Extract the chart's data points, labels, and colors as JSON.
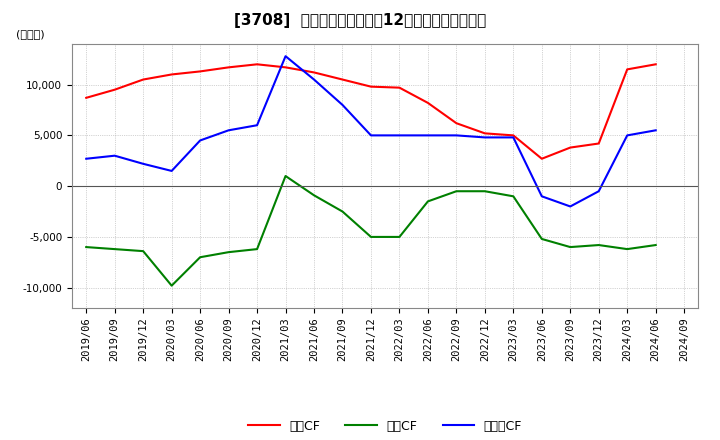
{
  "title": "[3708]  キャッシュフローの12か月移動合計の推移",
  "ylabel": "(百万円)",
  "ylim": [
    -12000,
    14000
  ],
  "yticks": [
    -10000,
    -5000,
    0,
    5000,
    10000
  ],
  "legend_labels": [
    "営業CF",
    "投資CF",
    "フリーCF"
  ],
  "colors": {
    "eigyo": "#ff0000",
    "toshi": "#008000",
    "free": "#0000ff"
  },
  "dates": [
    "2019/06",
    "2019/09",
    "2019/12",
    "2020/03",
    "2020/06",
    "2020/09",
    "2020/12",
    "2021/03",
    "2021/06",
    "2021/09",
    "2021/12",
    "2022/03",
    "2022/06",
    "2022/09",
    "2022/12",
    "2023/03",
    "2023/06",
    "2023/09",
    "2023/12",
    "2024/03",
    "2024/06",
    "2024/09"
  ],
  "eigyo": [
    8700,
    9500,
    10500,
    11000,
    11300,
    11700,
    12000,
    11700,
    11200,
    10500,
    9800,
    9700,
    8200,
    6200,
    5200,
    5000,
    2700,
    3800,
    4200,
    11500,
    12000,
    null
  ],
  "toshi": [
    -6000,
    -6200,
    -6400,
    -9800,
    -7000,
    -6500,
    -6200,
    1000,
    -900,
    -2500,
    -5000,
    -5000,
    -1500,
    -500,
    -500,
    -1000,
    -5200,
    -6000,
    -5800,
    -6200,
    -5800,
    null
  ],
  "free": [
    2700,
    3000,
    2200,
    1500,
    4500,
    5500,
    6000,
    12800,
    10500,
    8000,
    5000,
    5000,
    5000,
    5000,
    4800,
    4800,
    -1000,
    -2000,
    -500,
    5000,
    5500,
    null
  ],
  "background_color": "#ffffff",
  "grid_color": "#aaaaaa",
  "title_fontsize": 11,
  "tick_fontsize": 7.5,
  "legend_fontsize": 9
}
